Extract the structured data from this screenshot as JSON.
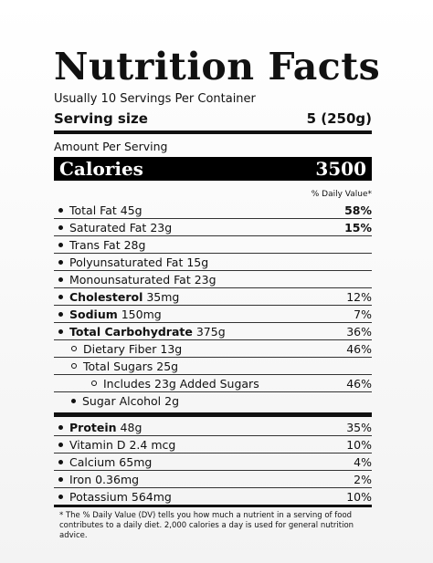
{
  "title": "Nutrition Facts",
  "servings_per_container": "Usually 10 Servings Per Container",
  "serving_size": {
    "label": "Serving size",
    "value": "5 (250g)"
  },
  "amount_per_serving": "Amount Per Serving",
  "calories": {
    "label": "Calories",
    "value": "3500"
  },
  "daily_value_header": "% Daily Value*",
  "nutrients": [
    {
      "name": "Total Fat",
      "amount": "45g",
      "dv": "58%"
    },
    {
      "name": "Saturated Fat",
      "amount": "23g",
      "dv": "15%"
    },
    {
      "name": "Trans Fat",
      "amount": "28g",
      "dv": ""
    },
    {
      "name": "Polyunsaturated Fat",
      "amount": "15g",
      "dv": ""
    },
    {
      "name": "Monounsaturated Fat",
      "amount": "23g",
      "dv": ""
    },
    {
      "name": "Cholesterol",
      "amount": "35mg",
      "dv": "12%"
    },
    {
      "name": "Sodium",
      "amount": "150mg",
      "dv": "7%"
    },
    {
      "name": "Total Carbohydrate",
      "amount": "375g",
      "dv": "36%"
    },
    {
      "name": "Dietary Fiber",
      "amount": "13g",
      "dv": "46%"
    },
    {
      "name": "Total Sugars",
      "amount": "25g",
      "dv": ""
    },
    {
      "name": "Includes 23g Added Sugars",
      "amount": "",
      "dv": "46%"
    },
    {
      "name": "Sugar Alcohol",
      "amount": "2g",
      "dv": ""
    }
  ],
  "vitamins": [
    {
      "name": "Protein",
      "amount": "48g",
      "dv": "35%"
    },
    {
      "name": "Vitamin D",
      "amount": "2.4 mcg",
      "dv": "10%"
    },
    {
      "name": "Calcium",
      "amount": "65mg",
      "dv": "4%"
    },
    {
      "name": "Iron",
      "amount": "0.36mg",
      "dv": "2%"
    },
    {
      "name": "Potassium",
      "amount": "564mg",
      "dv": "10%"
    }
  ],
  "footnote": "* The % Daily Value (DV) tells you how much a nutrient in a serving of food contributes to a daily diet. 2,000 calories a day is used for general nutrition advice."
}
